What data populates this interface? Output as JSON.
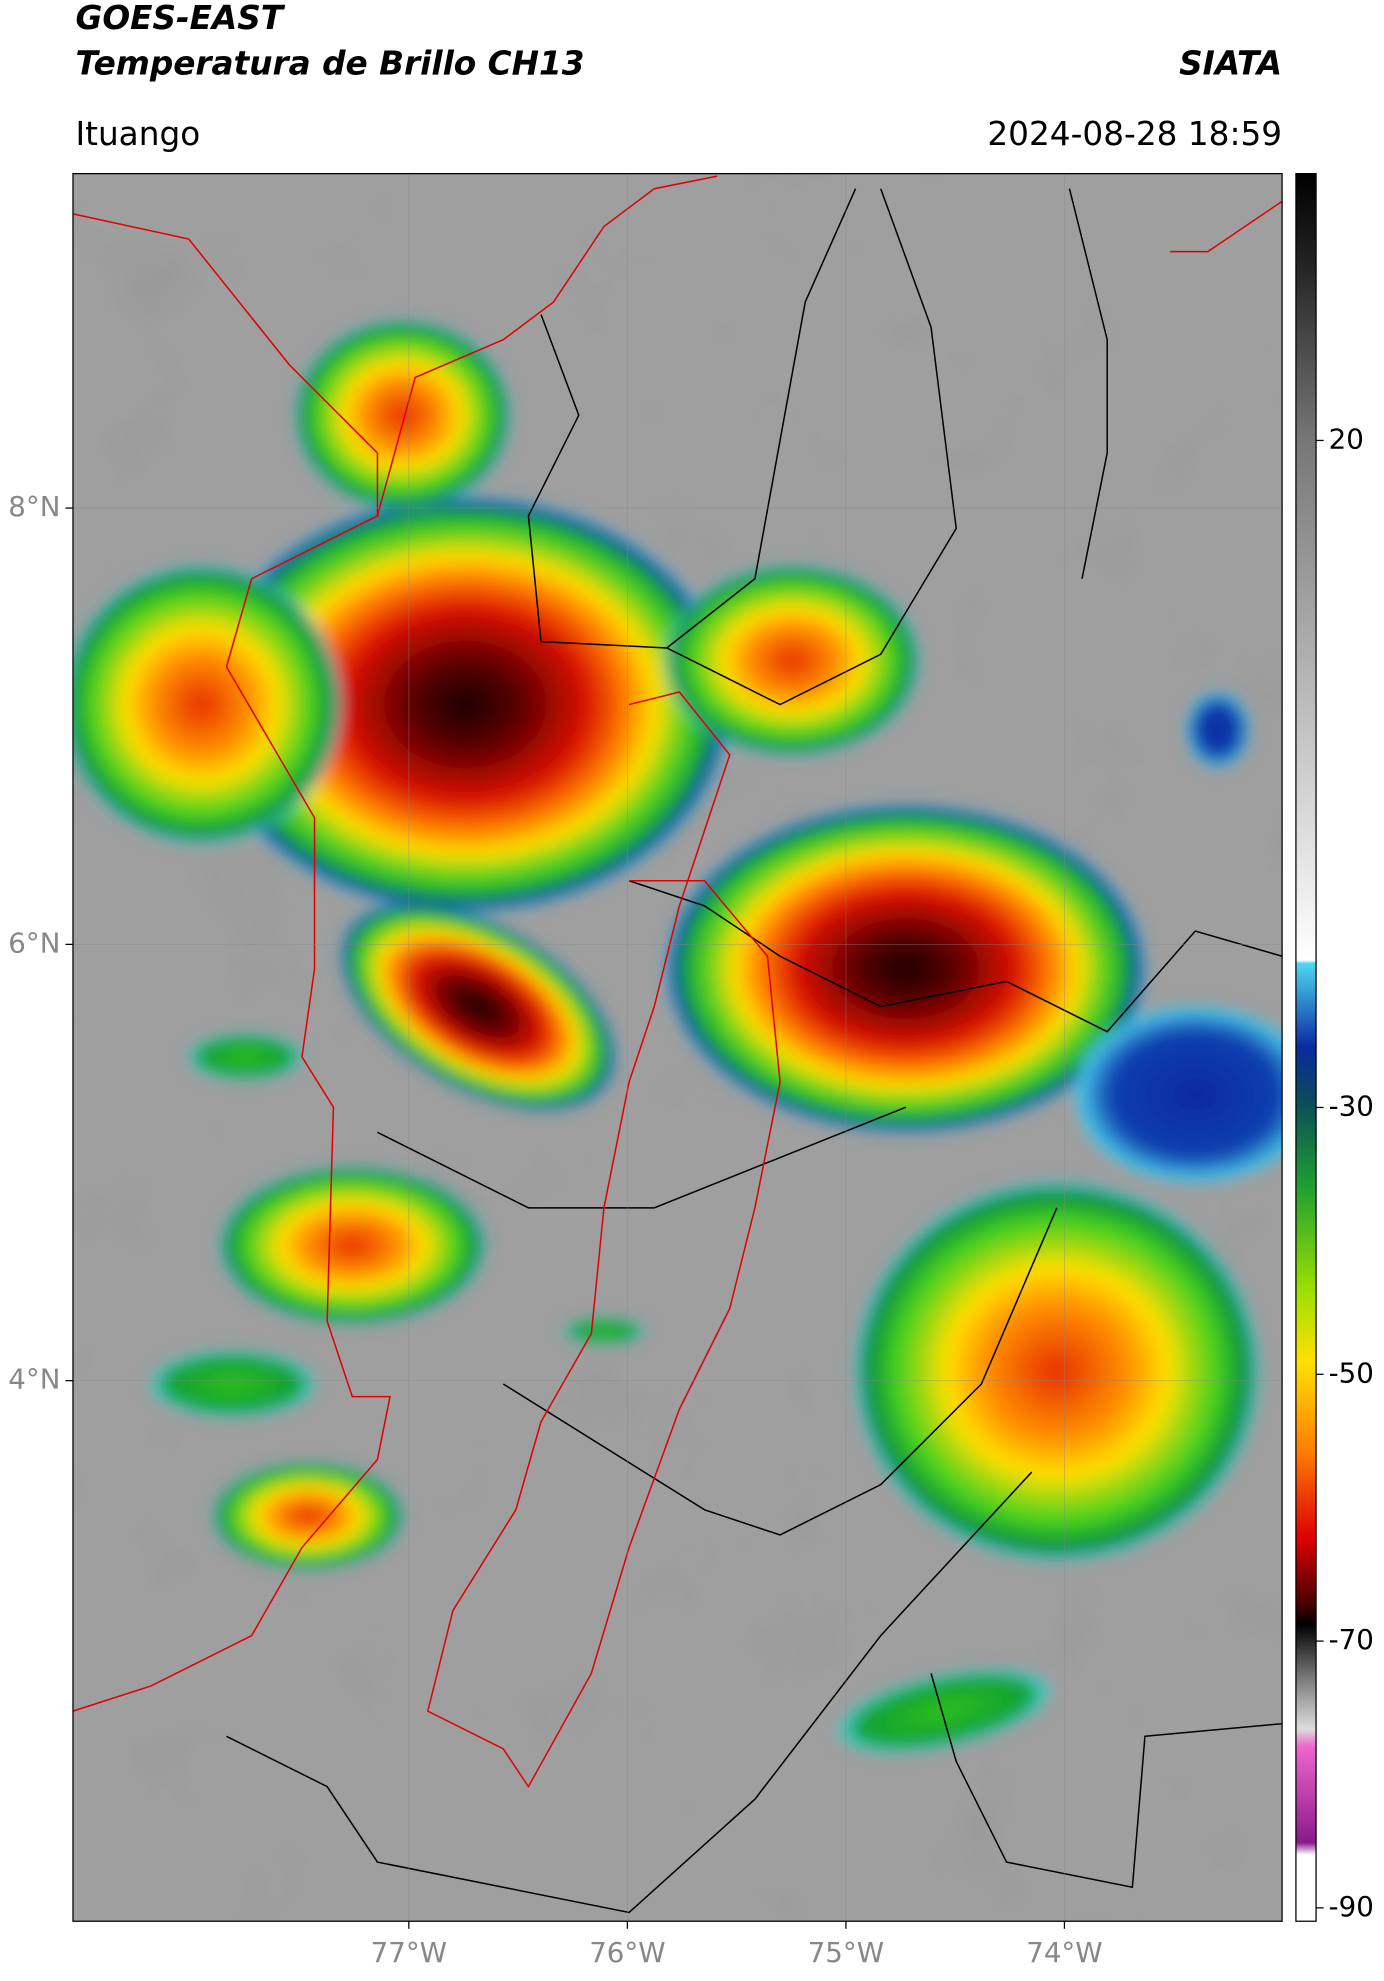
{
  "header": {
    "title": "GOES-EAST",
    "subtitle": "Temperatura de Brillo CH13",
    "source": "SIATA",
    "location": "Ituango",
    "datetime": "2024-08-28 18:59"
  },
  "map": {
    "xlim": [
      -78.537,
      -73.004
    ],
    "ylim": [
      1.522,
      9.533
    ],
    "xticks": [
      {
        "value": -77,
        "label": "77°W"
      },
      {
        "value": -76,
        "label": "76°W"
      },
      {
        "value": -75,
        "label": "75°W"
      },
      {
        "value": -74,
        "label": "74°W"
      }
    ],
    "yticks": [
      {
        "value": 8,
        "label": "8°N"
      },
      {
        "value": 6,
        "label": "6°N"
      },
      {
        "value": 4,
        "label": "4°N"
      }
    ],
    "grid": true
  },
  "colorbar": {
    "lim": [
      -91,
      40
    ],
    "ticks": [
      20,
      -30,
      -50,
      -70,
      -90
    ]
  }
}
